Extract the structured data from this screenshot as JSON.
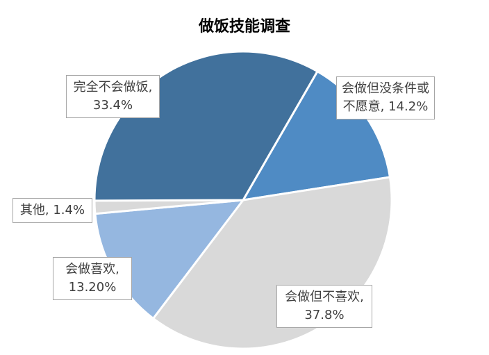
{
  "chart_data": {
    "type": "pie",
    "title": "做饭技能调查",
    "categories": [
      "会做但没条件或不愿意",
      "会做但不喜欢",
      "会做喜欢",
      "其他",
      "完全不会做饭"
    ],
    "values": [
      14.2,
      37.8,
      13.2,
      1.4,
      33.4
    ],
    "value_labels": [
      "14.2%",
      "37.8%",
      "13.20%",
      "1.4%",
      "33.4%"
    ],
    "colors": [
      "#4f8bc4",
      "#d9d9d9",
      "#95b7e0",
      "#d9d9d9",
      "#41719c"
    ]
  }
}
